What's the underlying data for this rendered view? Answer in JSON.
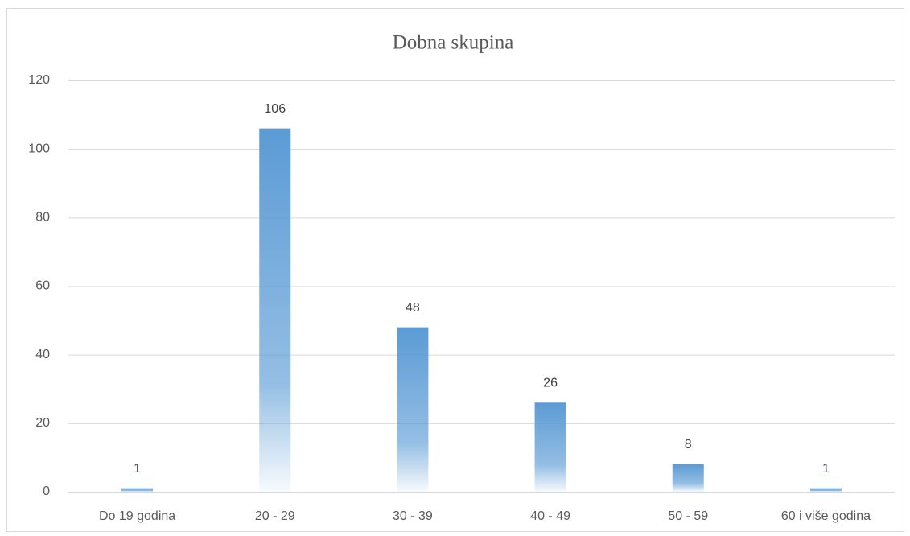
{
  "chart_data": {
    "type": "bar",
    "title": "Dobna skupina",
    "categories": [
      "Do 19 godina",
      "20 - 29",
      "30 - 39",
      "40 - 49",
      "50 - 59",
      "60 i više godina"
    ],
    "values": [
      1,
      106,
      48,
      26,
      8,
      1
    ],
    "color": "#5b9bd5",
    "ylim": [
      0,
      120
    ],
    "yticks": [
      0,
      20,
      40,
      60,
      80,
      100,
      120
    ],
    "grid": true
  }
}
